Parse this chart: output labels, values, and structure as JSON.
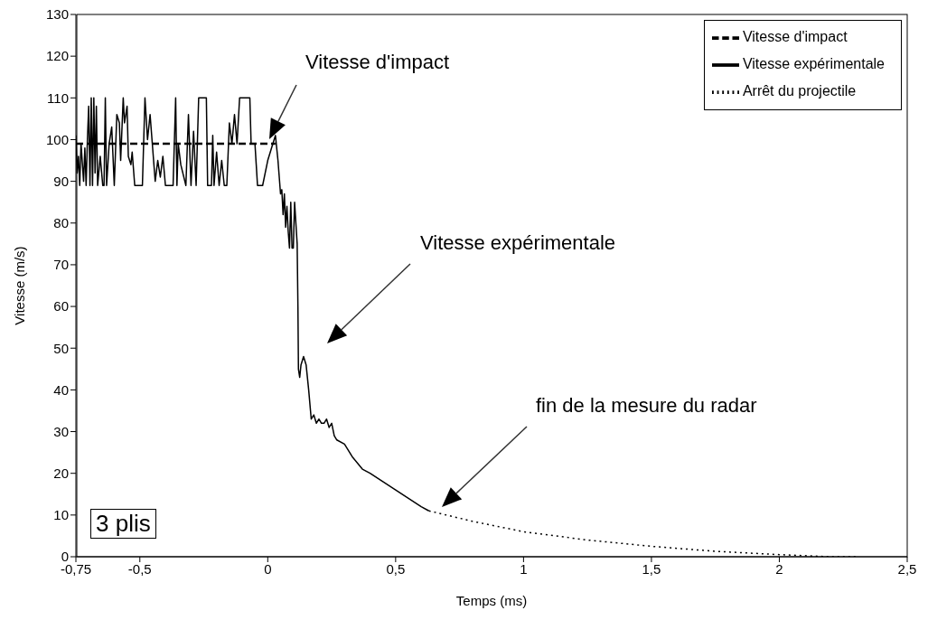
{
  "chart_data": {
    "type": "line",
    "xlabel": "Temps (ms)",
    "ylabel": "Vitesse (m/s)",
    "xlim": [
      -0.75,
      2.5
    ],
    "xticks": [
      {
        "value": -0.75,
        "label": "-0,75"
      },
      {
        "value": -0.5,
        "label": "-0,5"
      },
      0,
      {
        "value": 0.5,
        "label": "0,5"
      },
      1,
      {
        "value": 1.5,
        "label": "1,5"
      },
      2,
      {
        "value": 2.5,
        "label": "2,5"
      }
    ],
    "ylim": [
      0,
      130
    ],
    "yticks": [
      0,
      10,
      20,
      30,
      40,
      50,
      60,
      70,
      80,
      90,
      100,
      110,
      120,
      130
    ],
    "grid": false,
    "legend": "top right",
    "marker": "none",
    "series": [
      {
        "name": "Vitesse d'impact",
        "color": "#000000",
        "line_style": "dashed",
        "x": [
          -0.75,
          0.03
        ],
        "values": [
          99,
          99
        ]
      },
      {
        "name": "Vitesse expérimentale",
        "color": "#000000",
        "line_style": "solid",
        "x": [
          -0.75,
          -0.745,
          -0.74,
          -0.735,
          -0.73,
          -0.72,
          -0.715,
          -0.71,
          -0.705,
          -0.7,
          -0.695,
          -0.69,
          -0.685,
          -0.68,
          -0.675,
          -0.67,
          -0.665,
          -0.655,
          -0.645,
          -0.64,
          -0.635,
          -0.63,
          -0.62,
          -0.61,
          -0.6,
          -0.59,
          -0.58,
          -0.575,
          -0.565,
          -0.56,
          -0.55,
          -0.545,
          -0.535,
          -0.53,
          -0.52,
          -0.49,
          -0.48,
          -0.47,
          -0.46,
          -0.45,
          -0.44,
          -0.43,
          -0.42,
          -0.41,
          -0.4,
          -0.37,
          -0.36,
          -0.355,
          -0.35,
          -0.34,
          -0.32,
          -0.31,
          -0.3,
          -0.29,
          -0.28,
          -0.27,
          -0.24,
          -0.235,
          -0.22,
          -0.215,
          -0.21,
          -0.2,
          -0.19,
          -0.18,
          -0.17,
          -0.16,
          -0.15,
          -0.14,
          -0.13,
          -0.12,
          -0.11,
          -0.07,
          -0.065,
          -0.05,
          -0.045,
          -0.04,
          -0.02,
          0,
          0.02,
          0.03,
          0.04,
          0.05,
          0.055,
          0.06,
          0.065,
          0.07,
          0.075,
          0.08,
          0.085,
          0.09,
          0.095,
          0.1,
          0.105,
          0.115,
          0.118,
          0.12,
          0.125,
          0.13,
          0.14,
          0.15,
          0.16,
          0.17,
          0.18,
          0.19,
          0.2,
          0.21,
          0.22,
          0.23,
          0.24,
          0.25,
          0.26,
          0.27,
          0.3,
          0.33,
          0.37,
          0.4,
          0.45,
          0.5,
          0.55,
          0.6,
          0.63
        ],
        "values": [
          101,
          92,
          96,
          89,
          99,
          90,
          98,
          89,
          100,
          108,
          89,
          110,
          89,
          110,
          92,
          108,
          89,
          96,
          89,
          89,
          110,
          89,
          99,
          103,
          89,
          106,
          104,
          95,
          110,
          104,
          108,
          96,
          94,
          97,
          89,
          89,
          110,
          100,
          106,
          98,
          90,
          95,
          91,
          96,
          89,
          89,
          110,
          89,
          99,
          94,
          89,
          106,
          89,
          102,
          89,
          110,
          110,
          89,
          89,
          101,
          89,
          97,
          89,
          95,
          89,
          89,
          104,
          99,
          106,
          99,
          110,
          110,
          99,
          99,
          94,
          89,
          89,
          95,
          99,
          101,
          95,
          87,
          88,
          82,
          87,
          79,
          84,
          78,
          74,
          85,
          74,
          74,
          85,
          75,
          60,
          45,
          43,
          46,
          48,
          46,
          40,
          33,
          34,
          32,
          33,
          32,
          32,
          33,
          31,
          32,
          29,
          28,
          27,
          24,
          21,
          20,
          18,
          16,
          14,
          12,
          11
        ]
      },
      {
        "name": "Arrêt du projectile",
        "color": "#000000",
        "line_style": "dotted",
        "x": [
          0.63,
          0.8,
          1,
          1.25,
          1.5,
          1.75,
          2,
          2.2,
          2.3
        ],
        "values": [
          11,
          8.5,
          6,
          4,
          2.5,
          1.3,
          0.5,
          0,
          0
        ]
      }
    ],
    "annotations": [
      "Vitesse d'impact",
      "Vitesse expérimentale",
      "fin de la mesure du radar",
      "3 plis"
    ]
  }
}
